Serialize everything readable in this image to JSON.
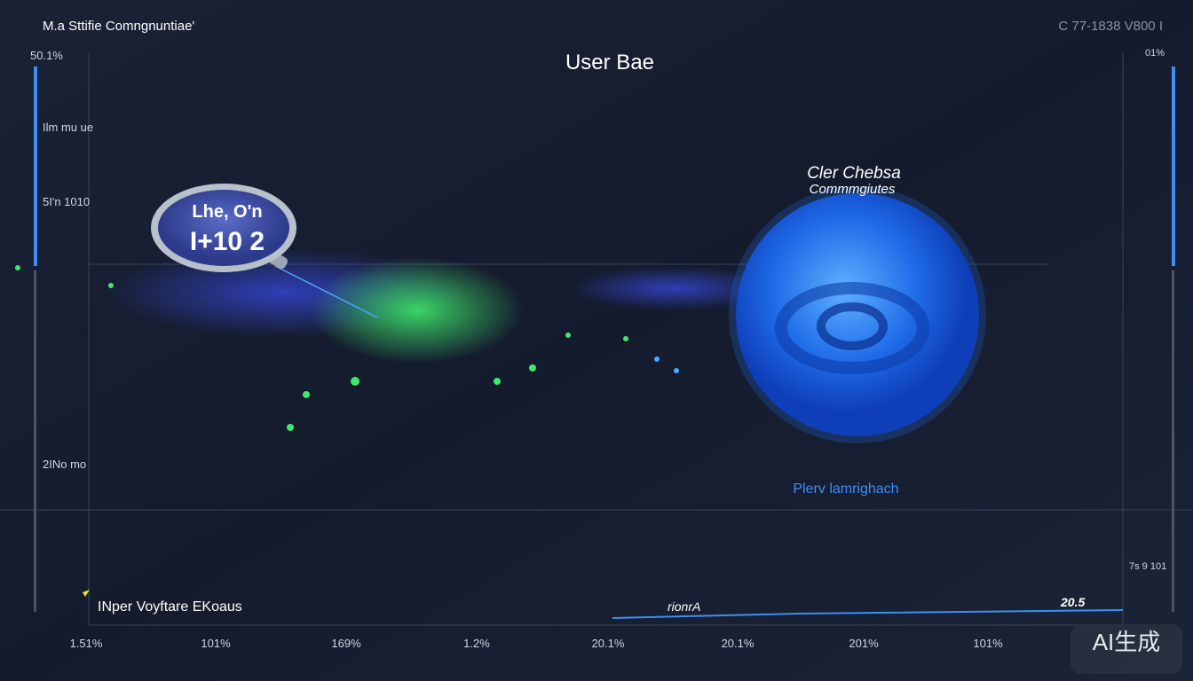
{
  "header": {
    "subtitle": "M.a Sttifie Comngnuntiae'",
    "code": "C 77-1838  V800 I",
    "title": "User Bae"
  },
  "left_axis": [
    "50.1%",
    "Ilm mu ue",
    "5I'n 1010",
    "2INo mo"
  ],
  "right_axis": [
    "01%",
    "7s 9 101"
  ],
  "callout": {
    "line1": "Lhe, O'n",
    "line2": "I+10 2"
  },
  "sphere": {
    "title1": "Cler Chebsa",
    "title2": "Commmgiutes",
    "caption": "Plerv lamrighach"
  },
  "legend": "INper Voyftare EKoaus",
  "trend": {
    "label": "rionrA",
    "end": "20.5"
  },
  "x_labels": [
    "1.51%",
    "101%",
    "169%",
    "1.2%",
    "20.1%",
    "20.1%",
    "201%",
    "101%"
  ],
  "watermark": "AI生成"
}
